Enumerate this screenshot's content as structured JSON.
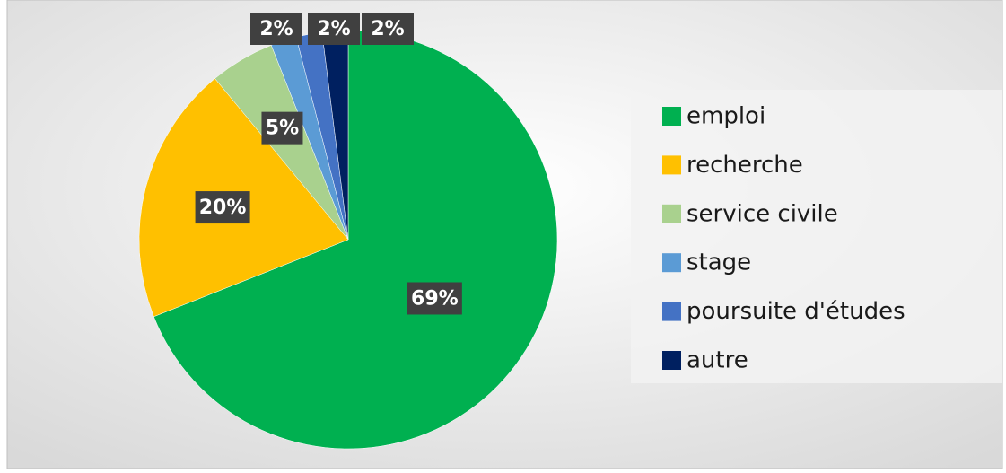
{
  "chart_data": {
    "type": "pie",
    "categories": [
      "emploi",
      "recherche",
      "service civile",
      "stage",
      "poursuite d'études",
      "autre"
    ],
    "values": [
      69,
      20,
      5,
      2,
      2,
      2
    ],
    "value_labels": [
      "69%",
      "20%",
      "5%",
      "2%",
      "2%",
      "2%"
    ],
    "colors": [
      "#00b050",
      "#ffc000",
      "#a9d18e",
      "#5b9bd5",
      "#4472c4",
      "#002060"
    ],
    "legend": "right"
  }
}
